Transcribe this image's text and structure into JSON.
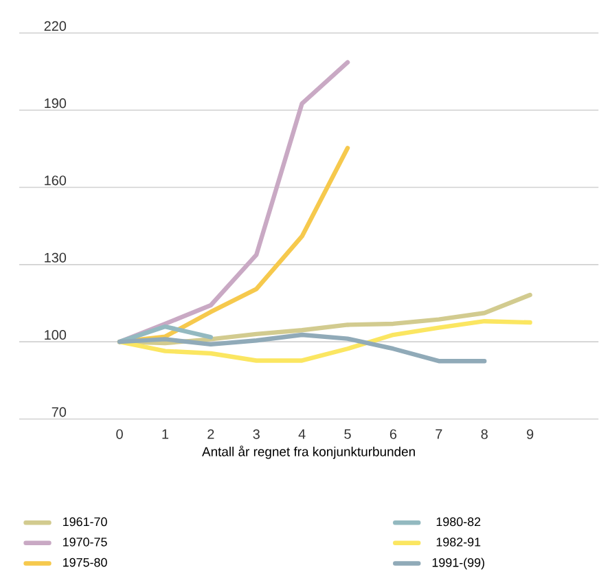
{
  "chart_data": {
    "type": "line",
    "xlabel": "Antall år regnet fra konjunkturbunden",
    "x": [
      0,
      1,
      2,
      3,
      4,
      5,
      6,
      7,
      8,
      9
    ],
    "series": [
      {
        "name": "1961-70",
        "color": "#d2cb8f",
        "values": [
          100,
          99.5,
          101,
          103,
          104.5,
          106.6,
          107,
          108.7,
          111.2,
          118.2
        ]
      },
      {
        "name": "1970-75",
        "color": "#c9a9c4",
        "values": [
          100,
          107,
          114.2,
          133.8,
          192.6,
          208.6,
          null,
          null,
          null,
          null
        ]
      },
      {
        "name": "1975-80",
        "color": "#f6c94d",
        "values": [
          100,
          102,
          111.6,
          120.5,
          141,
          175.3,
          null,
          null,
          null,
          null
        ]
      },
      {
        "name": "1980-82",
        "color": "#93b9c0",
        "values": [
          100,
          105.9,
          101.8,
          null,
          null,
          null,
          null,
          null,
          null,
          null
        ]
      },
      {
        "name": "1982-91",
        "color": "#fbe661",
        "values": [
          100,
          96.4,
          95.5,
          92.7,
          92.7,
          97.3,
          102.7,
          105.5,
          108,
          107.5
        ]
      },
      {
        "name": "1991-(99)",
        "color": "#90aab8",
        "values": [
          100,
          101,
          99,
          100.5,
          102.7,
          101.2,
          97.3,
          92.5,
          92.5,
          null
        ]
      }
    ],
    "xlim": [
      -2.2,
      10.5
    ],
    "ylim": [
      70,
      220
    ],
    "xticks": [
      0,
      1,
      2,
      3,
      4,
      5,
      6,
      7,
      8,
      9
    ],
    "yticks": [
      70,
      100,
      130,
      160,
      190,
      220
    ],
    "grid": "y",
    "legend": "bottom",
    "marker": "none",
    "line_style": "solid"
  }
}
